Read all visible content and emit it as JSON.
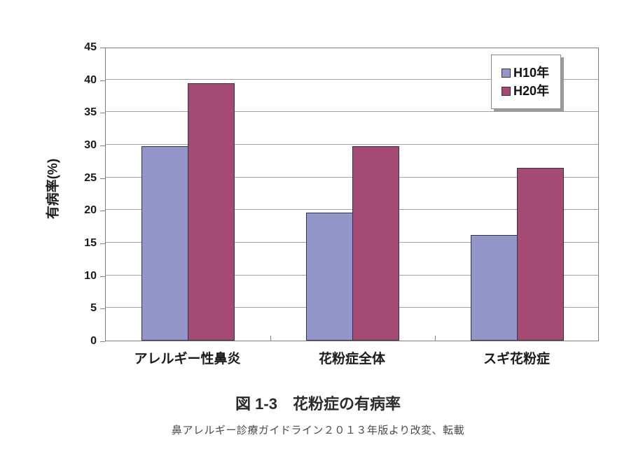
{
  "figure": {
    "caption": "図 1-3　花粉症の有病率",
    "source": "鼻アレルギー診療ガイドライン２０１３年版より改変、転載"
  },
  "chart_data": {
    "type": "bar",
    "title": "",
    "xlabel": "",
    "ylabel": "有病率(%)",
    "categories": [
      "アレルギー性鼻炎",
      "花粉症全体",
      "スギ花粉症"
    ],
    "series": [
      {
        "name": "H10年",
        "color": "#9495c8",
        "values": [
          29.8,
          19.6,
          16.2
        ]
      },
      {
        "name": "H20年",
        "color": "#a44a73",
        "values": [
          39.4,
          29.8,
          26.5
        ]
      }
    ],
    "ylim": [
      0,
      45
    ],
    "ytick_step": 5,
    "grid": true,
    "legend_position": "top-right",
    "colors": {
      "bar_border": "#35334a",
      "gridline": "#a6a2a2",
      "plot_border": "#808080"
    }
  }
}
